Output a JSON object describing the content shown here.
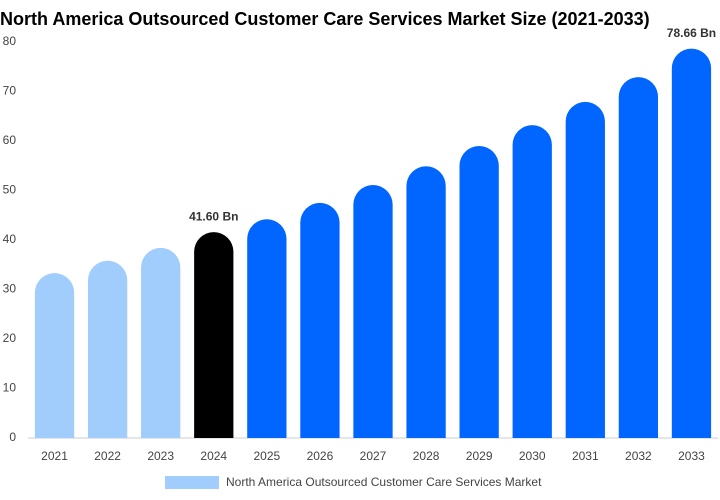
{
  "chart_data": {
    "type": "bar",
    "title": "North America Outsourced Customer Care Services Market Size (2021-2033)",
    "categories": [
      "2021",
      "2022",
      "2023",
      "2024",
      "2025",
      "2026",
      "2027",
      "2028",
      "2029",
      "2030",
      "2031",
      "2032",
      "2033"
    ],
    "series": [
      {
        "name": "North America Outsourced Customer Care Services Market",
        "color": "#a0cdfc",
        "values": [
          33.3,
          35.8,
          38.4,
          41.6,
          44.2,
          47.5,
          51.1,
          54.9,
          59.0,
          63.2,
          67.9,
          72.9,
          78.66
        ],
        "value_labels": [
          null,
          null,
          null,
          "41.60 Bn",
          null,
          null,
          null,
          null,
          null,
          null,
          null,
          null,
          "78.66 Bn"
        ],
        "colors": [
          "#a0cdfc",
          "#a0cdfc",
          "#a0cdfc",
          "#000000",
          "#0066ff",
          "#0066ff",
          "#0066ff",
          "#0066ff",
          "#0066ff",
          "#0066ff",
          "#0066ff",
          "#0066ff",
          "#0066ff"
        ]
      }
    ],
    "ylim": [
      0,
      80
    ],
    "yticks": [
      0,
      10,
      20,
      30,
      40,
      50,
      60,
      70,
      80
    ],
    "grid": false,
    "legend": "bottom"
  }
}
